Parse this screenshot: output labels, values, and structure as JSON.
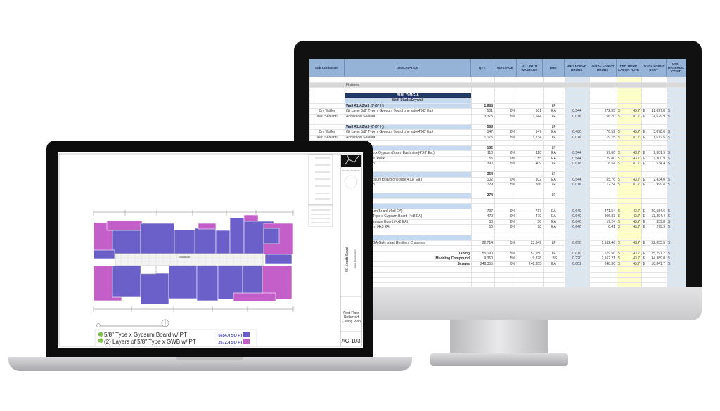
{
  "spreadsheet": {
    "headers": [
      "Sub Contractor",
      "DESCRIPTION",
      "QTY.",
      "WASTAGE",
      "QTY WITH WASTAGE",
      "UNIT",
      "UNIT LABOR HOURS",
      "TOTAL LABOR HOURS",
      "PER HOUR LABOR RATE",
      "TOTAL LABOR COST",
      "UNIT MATERIAL COST"
    ],
    "rows": [
      {
        "type": "blank"
      },
      {
        "type": "section",
        "desc": "Finishes"
      },
      {
        "type": "blank"
      },
      {
        "type": "building",
        "desc": "BUILDING A"
      },
      {
        "type": "group",
        "desc": "Wall Studs/Drywall"
      },
      {
        "type": "wall",
        "desc": "Wall A1/A2/A3 (9'-6\" H)",
        "qty": "1,688",
        "unit": "LF"
      },
      {
        "type": "item",
        "sub": "Dry Waller",
        "desc": "(1) Layer 5/8\" Type x Gypsum Board one side(4'X8' Ea.)",
        "qty": "501",
        "waste": "0%",
        "qtyw": "501",
        "unit": "EA",
        "ulh": "0.544",
        "tlh": "272.55",
        "rate": "43.7",
        "tlc": "11,897.8"
      },
      {
        "type": "item",
        "sub": "Joint Sealants",
        "desc": "Acoustical Sealant",
        "qty": "3,375",
        "waste": "5%",
        "qtyw": "3,544",
        "unit": "LF",
        "ulh": "0.016",
        "tlh": "56.70",
        "rate": "81.7",
        "tlc": "4,629.9"
      },
      {
        "type": "blank"
      },
      {
        "type": "wall",
        "desc": "Wall A1/A2/A3 (8'-0\" H)",
        "qty": "588",
        "unit": "LF"
      },
      {
        "type": "item",
        "sub": "Dry Waller",
        "desc": "(1) Layer 5/8\" Type x Gypsum Board one side(4'X8' Ea.)",
        "qty": "147",
        "waste": "0%",
        "qtyw": "147",
        "unit": "EA",
        "ulh": "0.480",
        "tlh": "70.52",
        "rate": "43.7",
        "tlc": "3,078.6"
      },
      {
        "type": "item",
        "sub": "Joint Sealants",
        "desc": "Acoustical Sealant",
        "qty": "1,175",
        "waste": "5%",
        "qtyw": "1,234",
        "unit": "LF",
        "ulh": "0.016",
        "tlh": "19.75",
        "rate": "81.7",
        "tlc": "1,612.5"
      },
      {
        "type": "blank"
      },
      {
        "type": "wall",
        "qty": "195",
        "unit": "LF"
      },
      {
        "type": "item",
        "desc": "e x Gypsum Board Each side(4'X8' Ea.)",
        "clip": true,
        "qty": "110",
        "waste": "0%",
        "qtyw": "110",
        "unit": "EA",
        "ulh": "0.544",
        "tlh": "59.60",
        "rate": "43.7",
        "tlc": "2,601.9"
      },
      {
        "type": "item",
        "desc": "et Rock",
        "clip": true,
        "qty": "55",
        "waste": "0%",
        "qtyw": "55",
        "unit": "EA",
        "ulh": "0.544",
        "tlh": "29.80",
        "rate": "43.7",
        "tlc": "1,300.9"
      },
      {
        "type": "item",
        "desc": "nt",
        "clip": true,
        "qty": "390",
        "waste": "5%",
        "qtyw": "409",
        "unit": "LF",
        "ulh": "0.016",
        "tlh": "6.54",
        "rate": "81.7",
        "tlc": "534.4"
      },
      {
        "type": "blank"
      },
      {
        "type": "wall",
        "qty": "364",
        "unit": "LF"
      },
      {
        "type": "item",
        "desc": "psum Board one side(4'X8' Ea.)",
        "clip": true,
        "qty": "102",
        "waste": "0%",
        "qtyw": "102",
        "unit": "EA",
        "ulh": "0.544",
        "tlh": "55.76",
        "rate": "43.7",
        "tlc": "2,434.0"
      },
      {
        "type": "item",
        "desc": "nt",
        "clip": true,
        "qty": "729",
        "waste": "5%",
        "qtyw": "766",
        "unit": "LF",
        "ulh": "0.016",
        "tlh": "12.24",
        "rate": "81.7",
        "tlc": "999.8"
      },
      {
        "type": "blank"
      },
      {
        "type": "wall",
        "qty": "274",
        "unit": "LF"
      },
      {
        "type": "blank"
      },
      {
        "type": "wall"
      },
      {
        "type": "item",
        "desc": "um Board (4x8 EA)",
        "clip": true,
        "qty": "737",
        "waste": "0%",
        "qtyw": "737",
        "unit": "EA",
        "ulh": "0.640",
        "tlh": "471.54",
        "rate": "43.7",
        "tlc": "20,584.6"
      },
      {
        "type": "item",
        "desc": "Type x Gypsum Board (4x8 EA)",
        "clip": true,
        "qty": "479",
        "waste": "0%",
        "qtyw": "479",
        "unit": "EA",
        "ulh": "0.640",
        "tlh": "306.83",
        "rate": "43.7",
        "tlc": "13,394.4"
      },
      {
        "type": "item",
        "desc": "ypsum Board (4x8 EA)",
        "clip": true,
        "qty": "30",
        "waste": "0%",
        "qtyw": "30",
        "unit": "EA",
        "ulh": "0.640",
        "tlh": "19.24",
        "rate": "43.7",
        "tlc": "839.8"
      },
      {
        "type": "item",
        "desc": "rd (4x8 EA)",
        "clip": true,
        "qty": "10",
        "waste": "0%",
        "qtyw": "10",
        "unit": "EA",
        "ulh": "0.640",
        "tlh": "6.41",
        "rate": "43.7",
        "tlc": "279.9"
      },
      {
        "type": "blank"
      },
      {
        "type": "wall"
      },
      {
        "type": "item",
        "desc": "GA Galv. steel Resilient Channels",
        "clip": true,
        "qty": "22,714",
        "waste": "5%",
        "qtyw": "23,849",
        "unit": "LF",
        "ulh": "0.050",
        "tlh": "1,192.46",
        "rate": "43.7",
        "tlc": "52,055.5"
      },
      {
        "type": "blank"
      },
      {
        "type": "total",
        "desc": "Taping",
        "qty": "55,190",
        "waste": "5%",
        "qtyw": "57,950",
        "unit": "LF",
        "ulh": "0.010",
        "tlh": "579.50",
        "rate": "43.7",
        "tlc": "25,297.2"
      },
      {
        "type": "total",
        "desc": "Mudding Compound",
        "qty": "9,360",
        "waste": "5%",
        "qtyw": "9,828",
        "unit": "LBS",
        "ulh": "0.220",
        "tlh": "2,162.21",
        "rate": "43.7",
        "tlc": "94,389.0"
      },
      {
        "type": "total",
        "desc": "Screws",
        "qty": "248,355",
        "waste": "0%",
        "qtyw": "248,355",
        "unit": "EA",
        "ulh": "0.001",
        "tlh": "248.36",
        "rate": "43.7",
        "tlc": "10,841.7"
      },
      {
        "type": "blank"
      },
      {
        "type": "blank"
      },
      {
        "type": "blank"
      },
      {
        "type": "blank"
      },
      {
        "type": "blank"
      }
    ],
    "currency": "$",
    "colors": {
      "header": "#95b3d7",
      "labor_hours_shade": "#dce6f1",
      "rate_shade": "#ffffcc",
      "building": "#1f3864",
      "wall_row": "#c5d9f1",
      "section": "#d9d9d9"
    }
  },
  "drawing": {
    "legend": [
      {
        "label": "5/8\" Type x Gypsum Board w/ PT",
        "area": "6654.0 SQ FT",
        "color": "#6b5fc9"
      },
      {
        "label": "(2) Layers of 5/8\" Type x GWB w/ PT",
        "area": "2672.4 SQ FT",
        "color": "#c45ec8"
      }
    ],
    "firm": "Crossley Architects",
    "project": "80 South Road",
    "client": "Sugar Development",
    "sheet_title": "First Floor Reflected Ceiling Plan",
    "sheet_number": "AC-103",
    "corridor_label": "CORRIDOR"
  }
}
